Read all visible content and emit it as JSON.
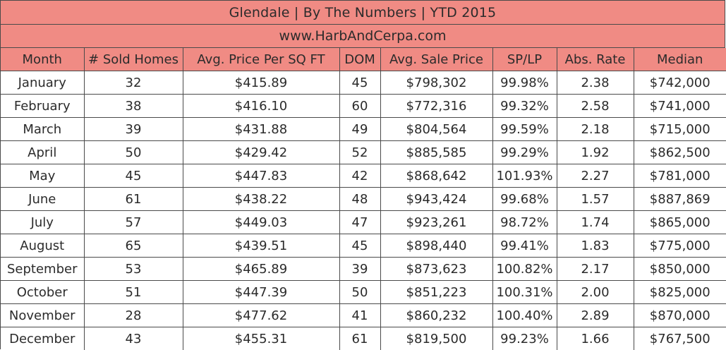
{
  "title": "Glendale |  By The Numbers  |  YTD 2015",
  "website": "www.HarbAndCerpa.com",
  "colors": {
    "header_bg": "#f08b84",
    "border": "#4a4a4a"
  },
  "columns": [
    "Month",
    "# Sold Homes",
    "Avg. Price Per SQ FT",
    "DOM",
    "Avg. Sale Price",
    "SP/LP",
    "Abs. Rate",
    "Median"
  ],
  "rows": [
    [
      "January",
      "32",
      "$415.89",
      "45",
      "$798,302",
      "99.98%",
      "2.38",
      "$742,000"
    ],
    [
      "February",
      "38",
      "$416.10",
      "60",
      "$772,316",
      "99.32%",
      "2.58",
      "$741,000"
    ],
    [
      "March",
      "39",
      "$431.88",
      "49",
      "$804,564",
      "99.59%",
      "2.18",
      "$715,000"
    ],
    [
      "April",
      "50",
      "$429.42",
      "52",
      "$885,585",
      "99.29%",
      "1.92",
      "$862,500"
    ],
    [
      "May",
      "45",
      "$447.83",
      "42",
      "$868,642",
      "101.93%",
      "2.27",
      "$781,000"
    ],
    [
      "June",
      "61",
      "$438.22",
      "48",
      "$943,424",
      "99.68%",
      "1.57",
      "$887,869"
    ],
    [
      "July",
      "57",
      "$449.03",
      "47",
      "$923,261",
      "98.72%",
      "1.74",
      "$865,000"
    ],
    [
      "August",
      "65",
      "$439.51",
      "45",
      "$898,440",
      "99.41%",
      "1.83",
      "$775,000"
    ],
    [
      "September",
      "53",
      "$465.89",
      "39",
      "$873,623",
      "100.82%",
      "2.17",
      "$850,000"
    ],
    [
      "October",
      "51",
      "$447.39",
      "50",
      "$851,223",
      "100.31%",
      "2.00",
      "$825,000"
    ],
    [
      "November",
      "28",
      "$477.62",
      "41",
      "$860,232",
      "100.40%",
      "2.89",
      "$870,000"
    ],
    [
      "December",
      "43",
      "$455.31",
      "61",
      "$819,500",
      "99.23%",
      "1.66",
      "$767,500"
    ]
  ]
}
